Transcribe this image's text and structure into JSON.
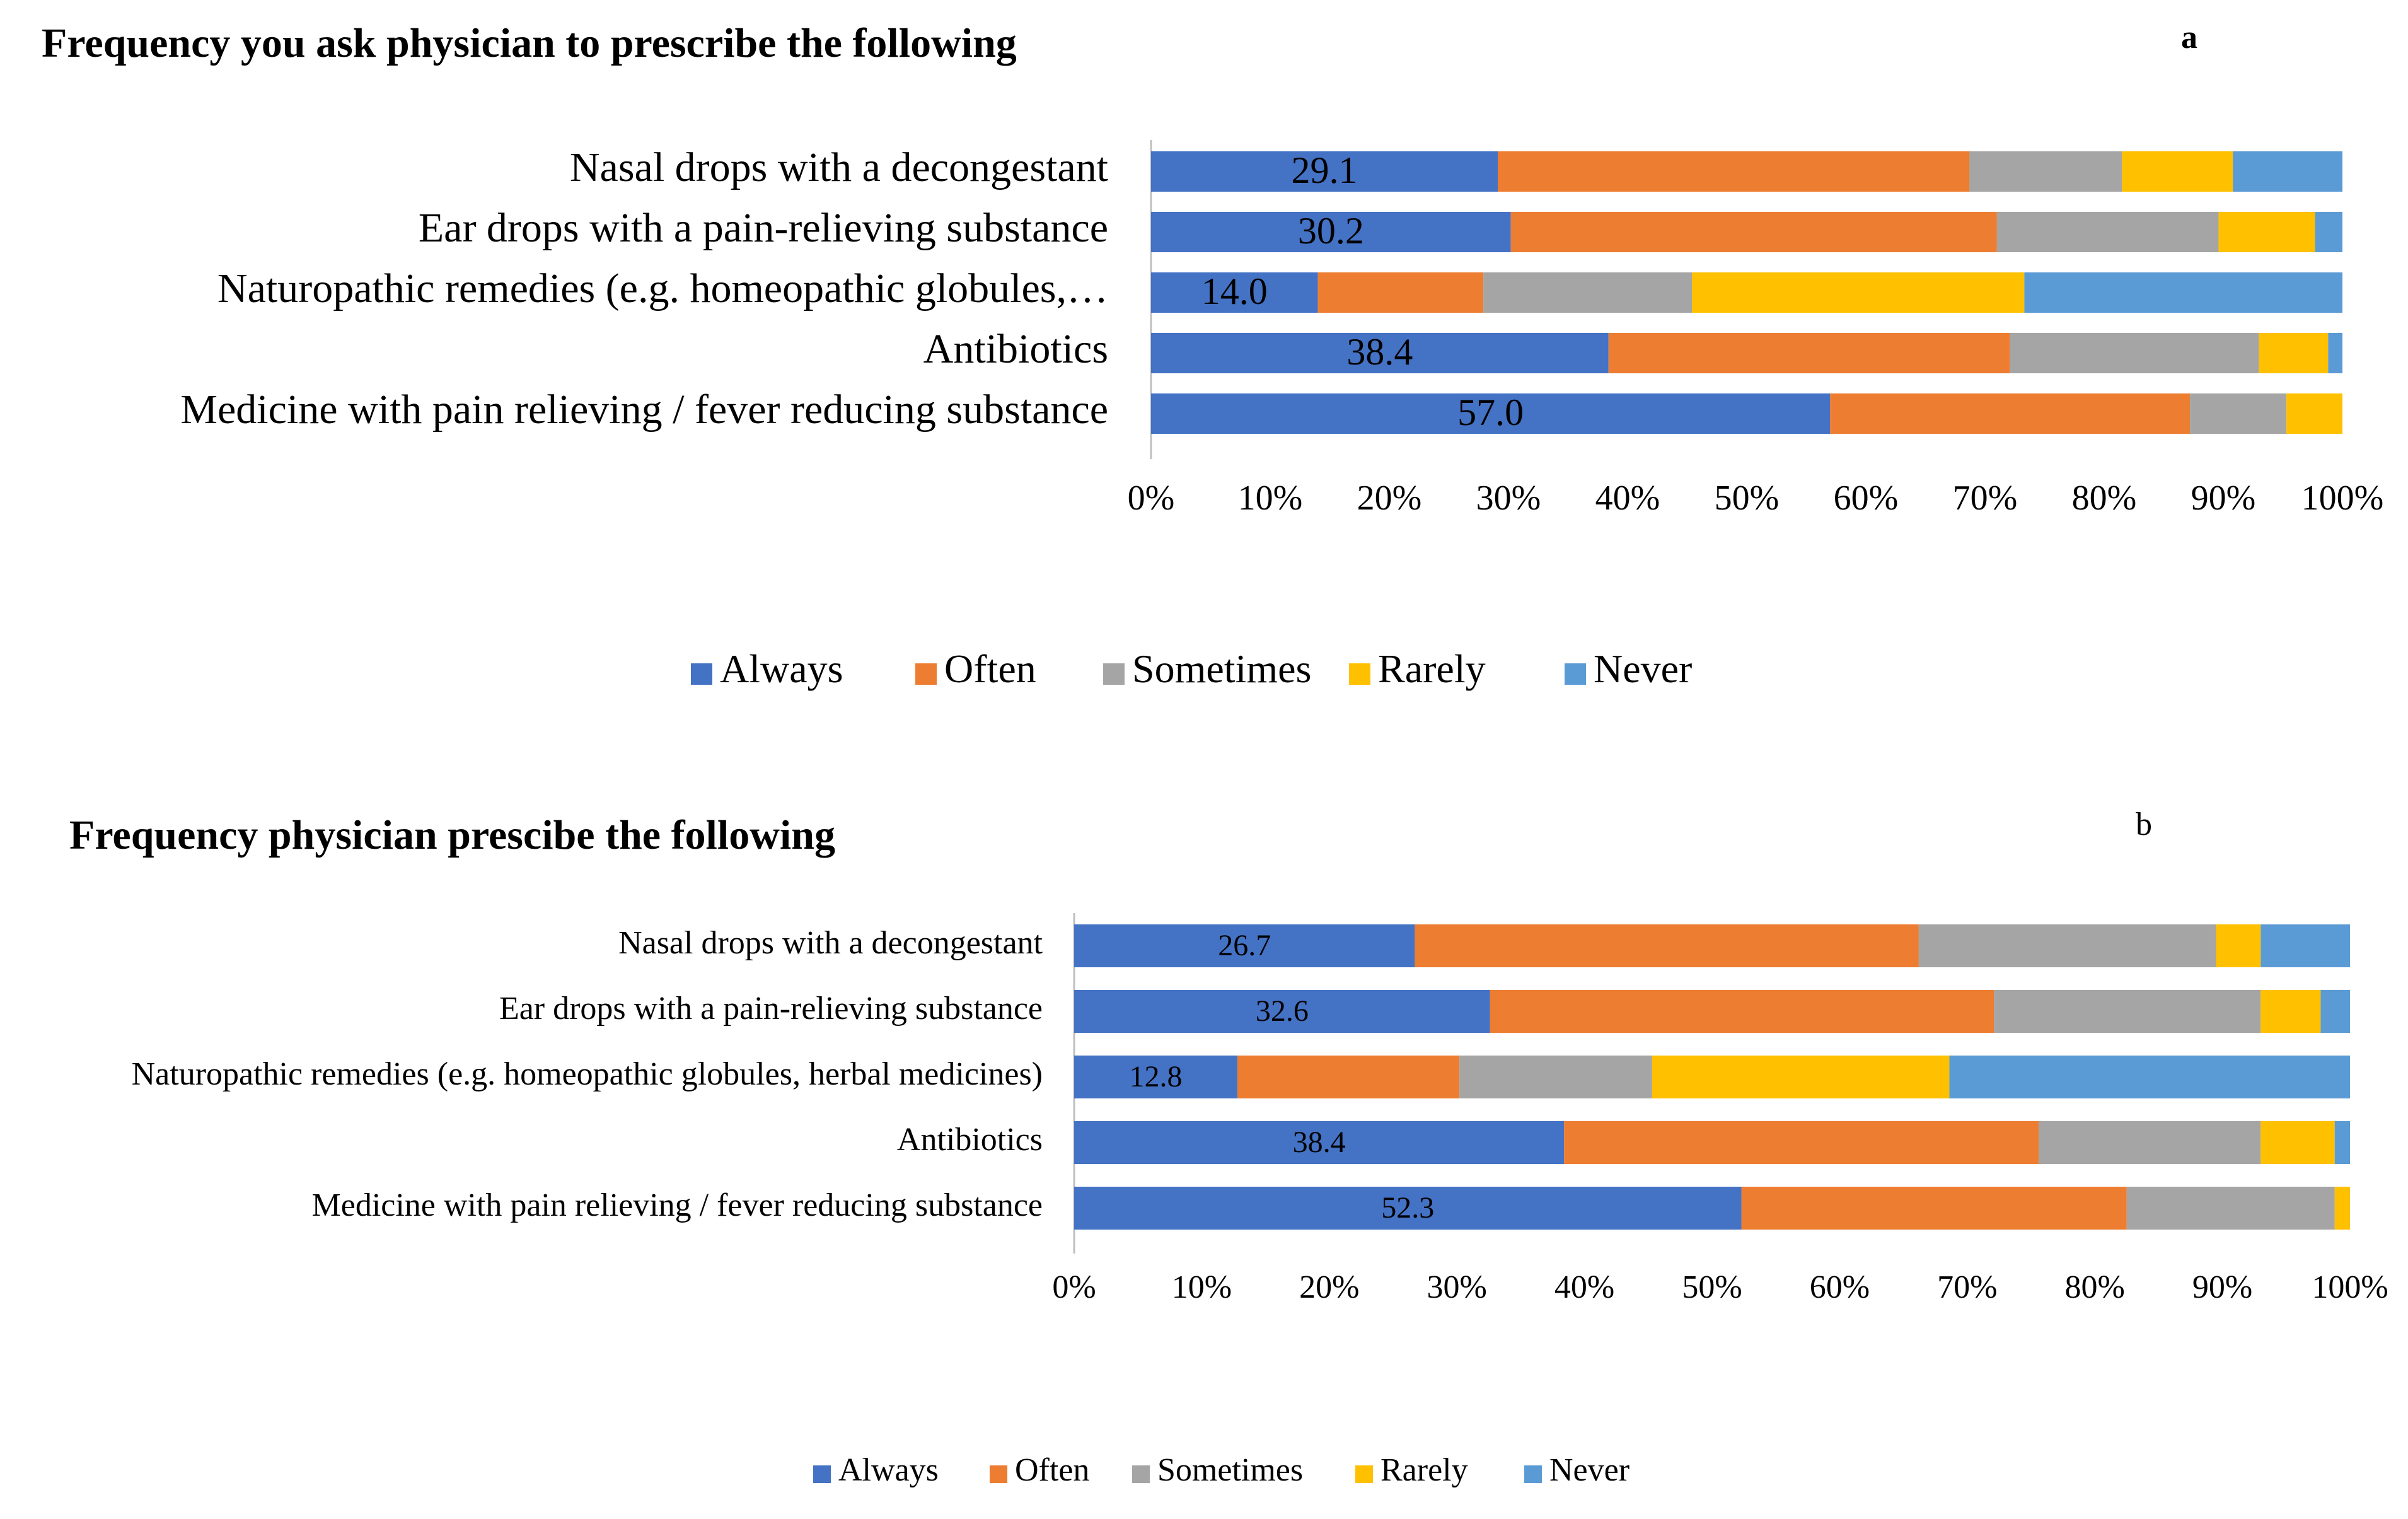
{
  "chart_data": [
    {
      "type": "bar",
      "stacked": true,
      "orientation": "horizontal",
      "percent_scale": true,
      "title": "Frequency you ask physician to prescribe the following",
      "panel_label": "a",
      "categories": [
        "Nasal drops with a decongestant",
        "Ear drops with a pain-relieving substance",
        "Naturopathic remedies (e.g. homeopathic globules,…",
        "Antibiotics",
        "Medicine with pain relieving / fever reducing  substance"
      ],
      "series": [
        {
          "name": "Always",
          "values": [
            29.1,
            30.2,
            14.0,
            38.4,
            57.0
          ]
        },
        {
          "name": "Often",
          "values": [
            39.6,
            40.8,
            13.9,
            33.7,
            30.2
          ]
        },
        {
          "name": "Sometimes",
          "values": [
            12.8,
            18.6,
            17.5,
            20.9,
            8.1
          ]
        },
        {
          "name": "Rarely",
          "values": [
            9.3,
            8.1,
            27.9,
            5.8,
            4.7
          ]
        },
        {
          "name": "Never",
          "values": [
            9.2,
            2.3,
            26.7,
            1.2,
            0.0
          ]
        }
      ],
      "data_labels": [
        "29.1",
        "30.2",
        "14.0",
        "38.4",
        "57.0"
      ],
      "x_ticks": [
        "0%",
        "10%",
        "20%",
        "30%",
        "40%",
        "50%",
        "60%",
        "70%",
        "80%",
        "90%",
        "100%"
      ],
      "xlim": [
        0,
        100
      ],
      "grid": false,
      "legend": "bottom"
    },
    {
      "type": "bar",
      "stacked": true,
      "orientation": "horizontal",
      "percent_scale": true,
      "title": "Frequency physician prescibe the following",
      "panel_label": "b",
      "categories": [
        "Nasal drops with a decongestant",
        "Ear drops with a pain-relieving substance",
        "Naturopathic remedies (e.g. homeopathic globules, herbal medicines)",
        "Antibiotics",
        "Medicine with pain relieving / fever reducing  substance"
      ],
      "series": [
        {
          "name": "Always",
          "values": [
            26.7,
            32.6,
            12.8,
            38.4,
            52.3
          ]
        },
        {
          "name": "Often",
          "values": [
            39.5,
            39.5,
            17.4,
            37.2,
            30.2
          ]
        },
        {
          "name": "Sometimes",
          "values": [
            23.3,
            20.9,
            15.1,
            17.4,
            16.3
          ]
        },
        {
          "name": "Rarely",
          "values": [
            3.5,
            4.7,
            23.3,
            5.8,
            1.2
          ]
        },
        {
          "name": "Never",
          "values": [
            7.0,
            2.3,
            31.4,
            1.2,
            0.0
          ]
        }
      ],
      "data_labels": [
        "26.7",
        "32.6",
        "12.8",
        "38.4",
        "52.3"
      ],
      "x_ticks": [
        "0%",
        "10%",
        "20%",
        "30%",
        "40%",
        "50%",
        "60%",
        "70%",
        "80%",
        "90%",
        "100%"
      ],
      "xlim": [
        0,
        100
      ],
      "grid": false,
      "legend": "bottom"
    }
  ],
  "colors": {
    "Always": "#4472c4",
    "Often": "#ed7d31",
    "Sometimes": "#a5a5a5",
    "Rarely": "#ffc000",
    "Never": "#5b9bd5"
  }
}
